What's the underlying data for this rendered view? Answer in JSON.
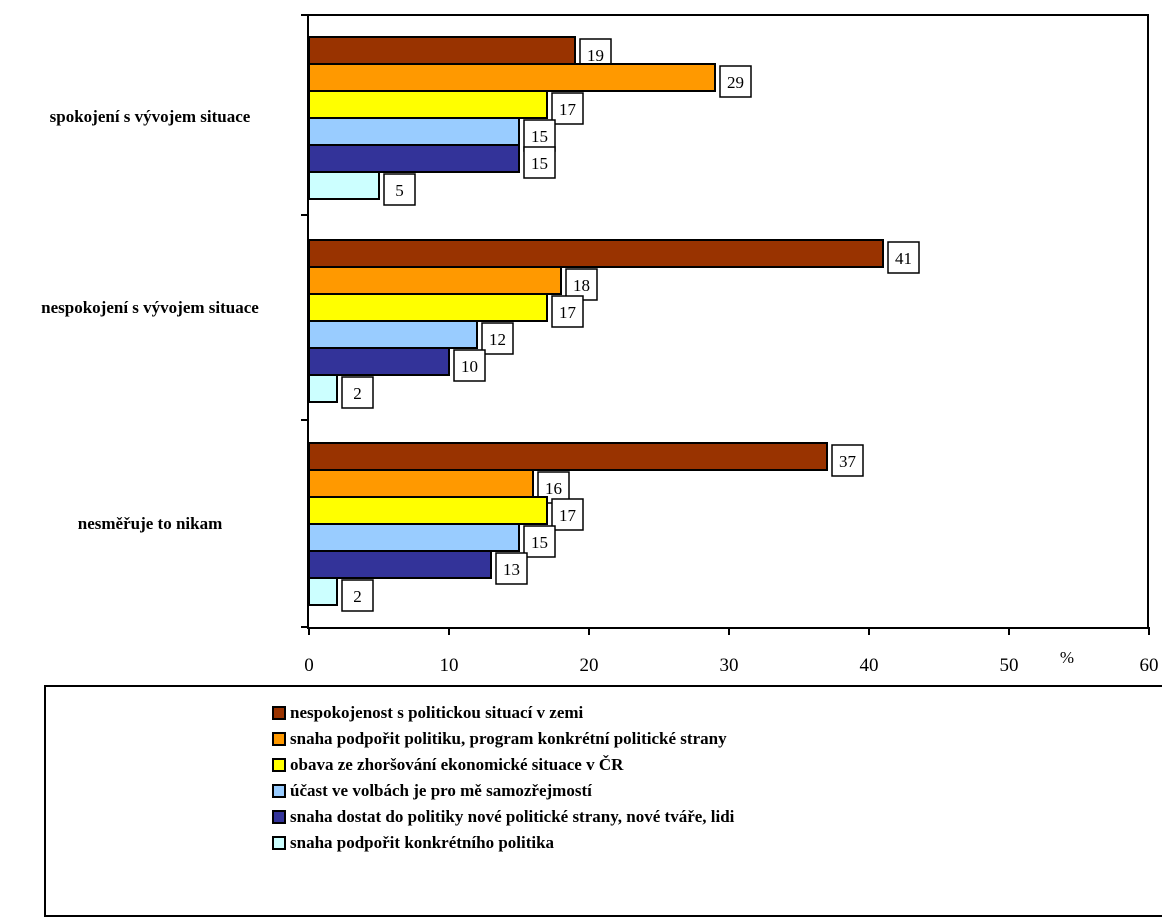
{
  "chart_data": {
    "type": "bar",
    "orientation": "horizontal",
    "categories": [
      "spokojení s vývojem situace",
      "nespokojení s vývojem situace",
      "nesměřuje to nikam"
    ],
    "series": [
      {
        "name": "nespokojenost s politickou situací v zemi",
        "color": "#993300",
        "values": [
          19,
          41,
          37
        ]
      },
      {
        "name": "snaha podpořit politiku, program konkrétní politické strany",
        "color": "#ff9900",
        "values": [
          29,
          18,
          16
        ]
      },
      {
        "name": "obava ze zhoršování ekonomické situace v ČR",
        "color": "#ffff00",
        "values": [
          17,
          17,
          17
        ]
      },
      {
        "name": "účast ve volbách je pro mě samozřejmostí",
        "color": "#99ccff",
        "values": [
          15,
          12,
          15
        ]
      },
      {
        "name": "snaha dostat do politiky nové politické strany, nové tváře, lidi",
        "color": "#333399",
        "values": [
          15,
          10,
          13
        ]
      },
      {
        "name": "snaha podpořit konkrétního politika",
        "color": "#ccffff",
        "values": [
          5,
          2,
          2
        ]
      }
    ],
    "xlim": [
      0,
      60
    ],
    "xticks": [
      "0",
      "10",
      "20",
      "30",
      "40",
      "50",
      "60"
    ],
    "xunit": "%",
    "legend_position": "bottom"
  }
}
